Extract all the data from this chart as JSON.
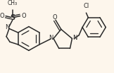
{
  "bg_color": "#fdf6ec",
  "line_color": "#2a2a2a",
  "text_color": "#2a2a2a",
  "line_width": 1.1,
  "font_size": 6.0,
  "figsize": [
    1.62,
    1.03
  ],
  "dpi": 100,
  "xlim": [
    0,
    162
  ],
  "ylim": [
    0,
    103
  ]
}
